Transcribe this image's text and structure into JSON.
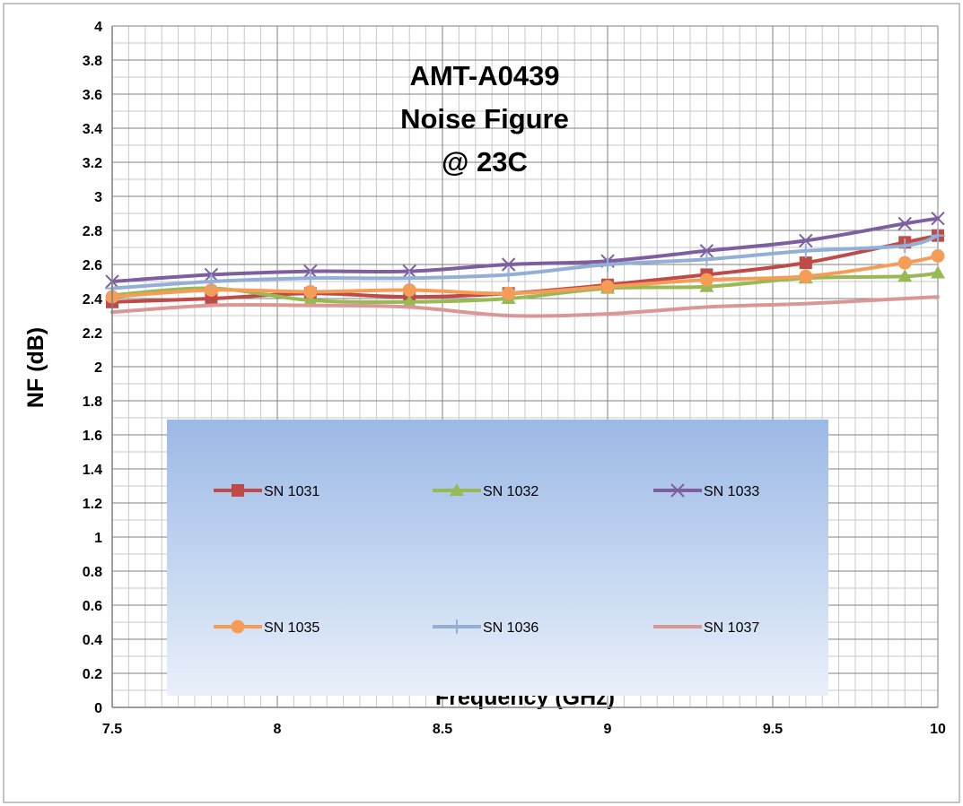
{
  "chart_data": {
    "type": "line",
    "title_lines": [
      "AMT-A0439",
      "Noise Figure",
      "@ 23C"
    ],
    "xlabel": "Frequency (GHz)",
    "ylabel": "NF  (dB)",
    "xlim": [
      7.5,
      10
    ],
    "ylim": [
      0,
      4
    ],
    "x_ticks": [
      "7.5",
      "8",
      "8.5",
      "9",
      "9.5",
      "10"
    ],
    "y_ticks": [
      "0",
      "0.2",
      "0.4",
      "0.6",
      "0.8",
      "1",
      "1.2",
      "1.4",
      "1.6",
      "1.8",
      "2",
      "2.2",
      "2.4",
      "2.6",
      "2.8",
      "3",
      "3.2",
      "3.4",
      "3.6",
      "3.8",
      "4"
    ],
    "grid": true,
    "legend_position": "center",
    "x": [
      7.5,
      7.8,
      8.1,
      8.4,
      8.7,
      9.0,
      9.3,
      9.6,
      9.9,
      10.0
    ],
    "series": [
      {
        "name": "SN 1031",
        "color": "#be4b48",
        "marker": "square",
        "values": [
          2.38,
          2.4,
          2.43,
          2.41,
          2.43,
          2.48,
          2.54,
          2.61,
          2.73,
          2.77
        ]
      },
      {
        "name": "SN 1032",
        "color": "#98b954",
        "marker": "triangle",
        "values": [
          2.42,
          2.46,
          2.39,
          2.38,
          2.4,
          2.46,
          2.47,
          2.52,
          2.53,
          2.55
        ]
      },
      {
        "name": "SN 1033",
        "color": "#7d5fa0",
        "marker": "x",
        "values": [
          2.5,
          2.54,
          2.56,
          2.56,
          2.6,
          2.62,
          2.68,
          2.74,
          2.84,
          2.87
        ]
      },
      {
        "name": "SN 1035",
        "color": "#f59d56",
        "marker": "circle",
        "values": [
          2.41,
          2.45,
          2.44,
          2.45,
          2.43,
          2.47,
          2.51,
          2.53,
          2.61,
          2.65
        ]
      },
      {
        "name": "SN 1036",
        "color": "#94afd6",
        "marker": "plus",
        "values": [
          2.46,
          2.5,
          2.52,
          2.52,
          2.54,
          2.6,
          2.63,
          2.68,
          2.71,
          2.77
        ]
      },
      {
        "name": "SN 1037",
        "color": "#d99795",
        "marker": "none",
        "values": [
          2.32,
          2.36,
          2.36,
          2.35,
          2.3,
          2.31,
          2.35,
          2.37,
          2.4,
          2.41
        ]
      }
    ]
  }
}
